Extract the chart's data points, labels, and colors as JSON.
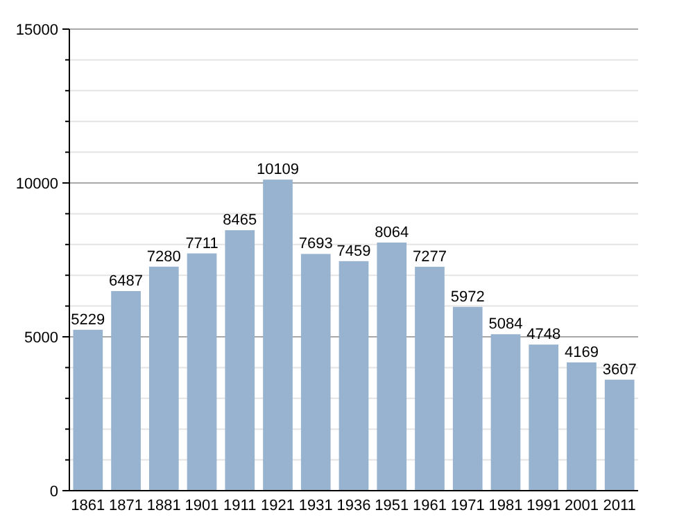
{
  "chart_data": {
    "type": "bar",
    "categories": [
      "1861",
      "1871",
      "1881",
      "1901",
      "1911",
      "1921",
      "1931",
      "1936",
      "1951",
      "1961",
      "1971",
      "1981",
      "1991",
      "2001",
      "2011"
    ],
    "values": [
      5229,
      6487,
      7280,
      7711,
      8465,
      10109,
      7693,
      7459,
      8064,
      7277,
      5972,
      5084,
      4748,
      4169,
      3607
    ],
    "color": "#98b3cf",
    "ylim": [
      0,
      15000
    ],
    "yticks": [
      0,
      {
        "value": 1000,
        "label": null
      },
      {
        "value": 2000,
        "label": null
      },
      {
        "value": 3000,
        "label": null
      },
      {
        "value": 4000,
        "label": null
      },
      5000,
      {
        "value": 6000,
        "label": null
      },
      {
        "value": 7000,
        "label": null
      },
      {
        "value": 8000,
        "label": null
      },
      {
        "value": 9000,
        "label": null
      },
      10000,
      {
        "value": 11000,
        "label": null
      },
      {
        "value": 12000,
        "label": null
      },
      {
        "value": 13000,
        "label": null
      },
      {
        "value": 14000,
        "label": null
      },
      15000
    ],
    "grid": true,
    "data_labels": true
  }
}
